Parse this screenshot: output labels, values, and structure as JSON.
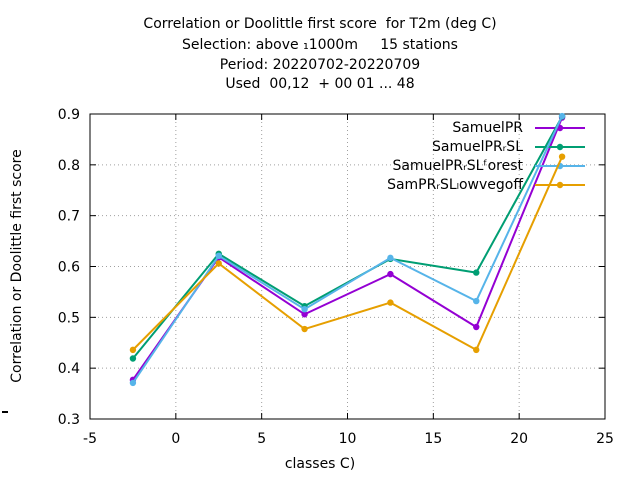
{
  "chart_data": {
    "type": "line",
    "title_lines": [
      "Correlation or Doolittle first score  for T2m (deg C)",
      "Selection: above ₁1000m     15 stations",
      "Period: 20220702-20220709",
      "Used  00,12  + 00 01 ... 48"
    ],
    "xlabel": "classes C)",
    "ylabel": "Correlation or Doolittle first score",
    "xlim": [
      -5,
      25
    ],
    "ylim": [
      0.3,
      0.9
    ],
    "xticks": [
      -5,
      0,
      5,
      10,
      15,
      20,
      25
    ],
    "yticks": [
      0.3,
      0.4,
      0.5,
      0.6,
      0.7,
      0.8,
      0.9
    ],
    "xtick_labels": [
      "-5",
      "0",
      "5",
      "10",
      "15",
      "20",
      "25"
    ],
    "ytick_labels": [
      "0.3",
      "0.4",
      "0.5",
      "0.6",
      "0.7",
      "0.8",
      "0.9"
    ],
    "grid": true,
    "legend_position": "top-right",
    "x": [
      -2.5,
      2.5,
      7.5,
      12.5,
      17.5,
      22.5
    ],
    "series": [
      {
        "name": "SamuelPR",
        "color": "#9400d3",
        "values": [
          0.377,
          0.618,
          0.506,
          0.585,
          0.481,
          0.893
        ]
      },
      {
        "name": "SamuelPRᵣSL",
        "color": "#009e73",
        "values": [
          0.419,
          0.625,
          0.522,
          0.615,
          0.588,
          0.895
        ]
      },
      {
        "name": "SamuelPRᵣSLᶠorest",
        "color": "#56b4e9",
        "values": [
          0.371,
          0.621,
          0.516,
          0.617,
          0.532,
          0.896
        ]
      },
      {
        "name": "SamPRᵣSLₗowvegoff",
        "color": "#e69f00",
        "values": [
          0.436,
          0.606,
          0.477,
          0.529,
          0.436,
          0.816
        ]
      }
    ]
  }
}
